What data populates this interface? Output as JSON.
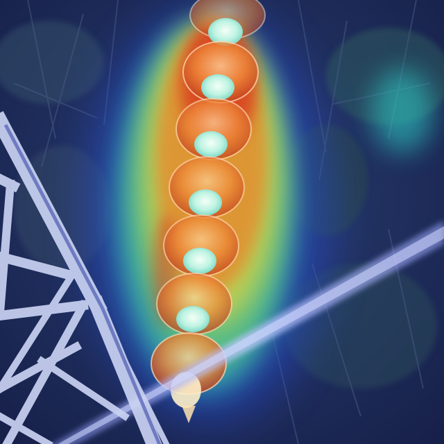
{
  "image": {
    "subject": "",
    "insulator_discs": 7,
    "overlay": "heatmap"
  },
  "colors": {
    "background_dark": "#1c2a52",
    "foliage_green": "#3c6a4a",
    "heat_blue": "#2b4fe0",
    "heat_cyan": "#2fd3c9",
    "heat_green": "#6fd86a",
    "heat_yellow": "#e6d640",
    "heat_orange": "#e8842a",
    "heat_red": "#d8321c",
    "tower_steel": "#c9d2f2",
    "disc_core": "#c8f5e8",
    "wire_glow": "#a9b6ff"
  }
}
